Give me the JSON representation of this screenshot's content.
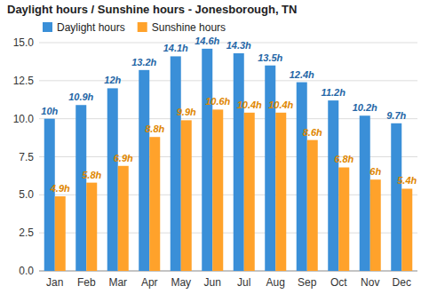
{
  "chart_data": {
    "type": "bar",
    "title": "Daylight hours / Sunshine hours - Jonesborough, TN",
    "categories": [
      "Jan",
      "Feb",
      "Mar",
      "Apr",
      "May",
      "Jun",
      "Jul",
      "Aug",
      "Sep",
      "Oct",
      "Nov",
      "Dec"
    ],
    "series": [
      {
        "name": "Daylight hours",
        "color": "#3a8fd8",
        "values": [
          10,
          10.9,
          12,
          13.2,
          14.1,
          14.6,
          14.3,
          13.5,
          12.4,
          11.2,
          10.2,
          9.7
        ],
        "value_labels": [
          "10h",
          "10.9h",
          "12h",
          "13.2h",
          "14.1h",
          "14.6h",
          "14.3h",
          "13.5h",
          "12.4h",
          "11.2h",
          "10.2h",
          "9.7h"
        ]
      },
      {
        "name": "Sunshine hours",
        "color": "#ffa22b",
        "values": [
          4.9,
          5.8,
          6.9,
          8.8,
          9.9,
          10.6,
          10.4,
          10.4,
          8.6,
          6.8,
          6,
          5.4
        ],
        "value_labels": [
          "4.9h",
          "5.8h",
          "6.9h",
          "8.8h",
          "9.9h",
          "10.6h",
          "10.4h",
          "10.4h",
          "8.6h",
          "6.8h",
          "6h",
          "5.4h"
        ]
      }
    ],
    "ylim": [
      0,
      15
    ],
    "yticks": [
      {
        "value": 0,
        "label": "0.0"
      },
      2.5,
      {
        "value": 5,
        "label": "5.0"
      },
      7.5,
      {
        "value": 10,
        "label": "10.0"
      },
      12.5,
      {
        "value": 15,
        "label": "15.0"
      }
    ],
    "grid": true,
    "legend": "top-left",
    "data_labels": true
  }
}
